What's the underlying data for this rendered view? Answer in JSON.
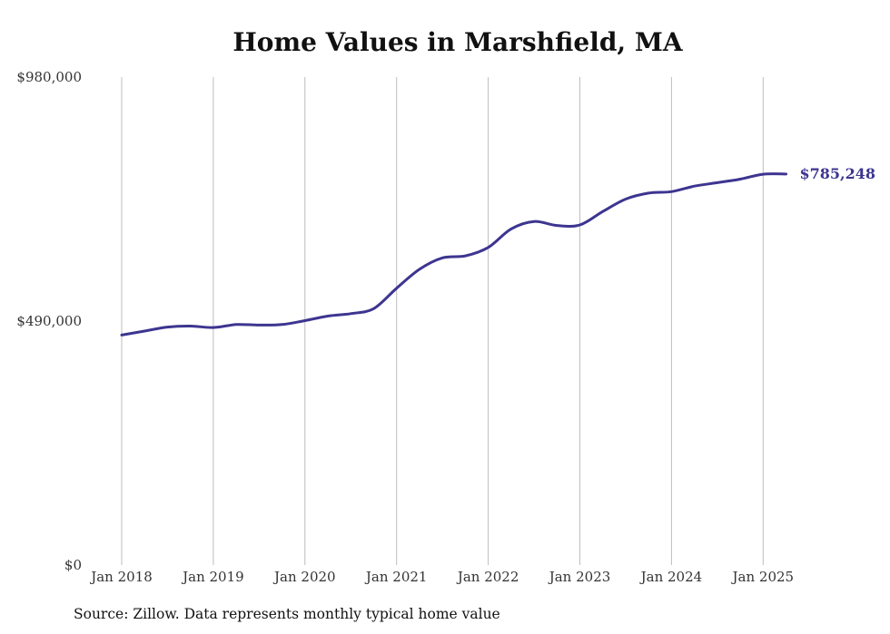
{
  "chart_data": {
    "type": "line",
    "title": "Home Values in Marshfield, MA",
    "xlabel": "",
    "ylabel": "",
    "ylim": [
      0,
      980000
    ],
    "y_ticks": [
      {
        "value": 0,
        "label": "$0"
      },
      {
        "value": 490000,
        "label": "$490,000"
      },
      {
        "value": 980000,
        "label": "$980,000"
      }
    ],
    "x_ticks": [
      {
        "value": "2018-01",
        "label": "Jan 2018"
      },
      {
        "value": "2019-01",
        "label": "Jan 2019"
      },
      {
        "value": "2020-01",
        "label": "Jan 2020"
      },
      {
        "value": "2021-01",
        "label": "Jan 2021"
      },
      {
        "value": "2022-01",
        "label": "Jan 2022"
      },
      {
        "value": "2023-01",
        "label": "Jan 2023"
      },
      {
        "value": "2024-01",
        "label": "Jan 2024"
      },
      {
        "value": "2025-01",
        "label": "Jan 2025"
      }
    ],
    "grid": {
      "vertical": true,
      "horizontal": false
    },
    "series": [
      {
        "color": "#3d3590",
        "x": [
          "2018-01",
          "2018-04",
          "2018-07",
          "2018-10",
          "2019-01",
          "2019-04",
          "2019-07",
          "2019-10",
          "2020-01",
          "2020-04",
          "2020-07",
          "2020-10",
          "2021-01",
          "2021-04",
          "2021-07",
          "2021-10",
          "2022-01",
          "2022-04",
          "2022-07",
          "2022-10",
          "2023-01",
          "2023-04",
          "2023-07",
          "2023-10",
          "2024-01",
          "2024-04",
          "2024-07",
          "2024-10",
          "2025-01",
          "2025-04"
        ],
        "values": [
          462000,
          470000,
          478000,
          480000,
          477000,
          483000,
          482000,
          483000,
          491000,
          500000,
          505000,
          515000,
          556000,
          594000,
          617000,
          621000,
          638000,
          675000,
          690000,
          682000,
          683000,
          710000,
          735000,
          747000,
          750000,
          761000,
          768000,
          775000,
          785000,
          785248
        ],
        "end_label": "$785,248"
      }
    ]
  },
  "footer": {
    "source": "Source: Zillow. Data represents monthly typical home value"
  }
}
